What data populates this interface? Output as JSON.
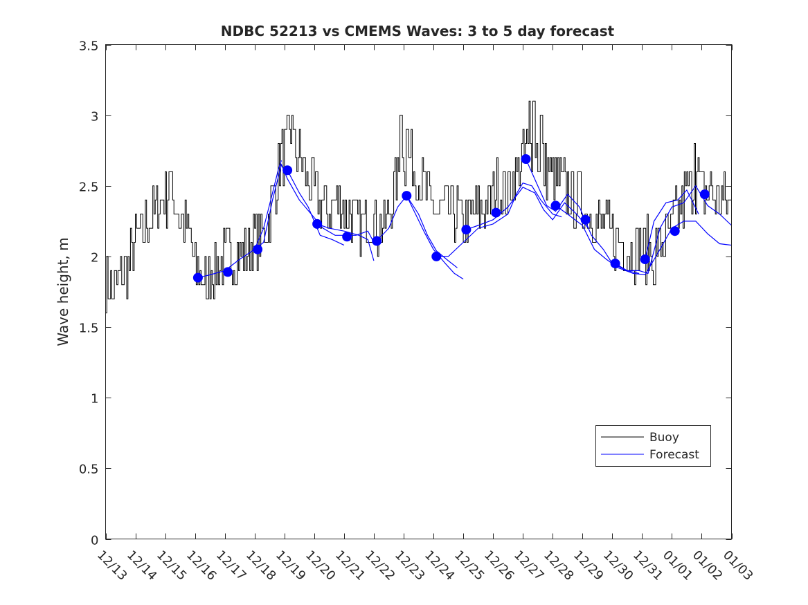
{
  "chart_data": {
    "type": "line",
    "title": "NDBC 52213 vs CMEMS Waves: 3 to 5 day forecast",
    "xlabel": "",
    "ylabel": "Wave height, m",
    "ylim": [
      0,
      3.5
    ],
    "xlim_days": [
      0,
      21
    ],
    "yticks": [
      0,
      0.5,
      1,
      1.5,
      2,
      2.5,
      3,
      3.5
    ],
    "ytick_labels": [
      "0",
      "0.5",
      "1",
      "1.5",
      "2",
      "2.5",
      "3",
      "3.5"
    ],
    "xtick_labels": [
      "12/13",
      "12/14",
      "12/15",
      "12/16",
      "12/17",
      "12/18",
      "12/19",
      "12/20",
      "12/21",
      "12/22",
      "12/23",
      "12/24",
      "12/25",
      "12/26",
      "12/27",
      "12/28",
      "12/29",
      "12/30",
      "12/31",
      "01/01",
      "01/02",
      "01/03"
    ],
    "legend": {
      "position": "bottom-right",
      "entries": [
        "Buoy",
        "Forecast"
      ]
    },
    "colors": {
      "buoy": "#000000",
      "forecast": "#0000ff",
      "axis": "#262626"
    },
    "buoy_anchors": [
      [
        0.0,
        1.85
      ],
      [
        0.15,
        1.75
      ],
      [
        0.5,
        1.85
      ],
      [
        0.8,
        1.95
      ],
      [
        1.0,
        2.1
      ],
      [
        1.3,
        2.2
      ],
      [
        1.6,
        2.3
      ],
      [
        1.9,
        2.4
      ],
      [
        2.1,
        2.45
      ],
      [
        2.3,
        2.4
      ],
      [
        2.5,
        2.25
      ],
      [
        2.7,
        2.2
      ],
      [
        2.9,
        2.05
      ],
      [
        3.0,
        1.9
      ],
      [
        3.2,
        1.85
      ],
      [
        3.5,
        1.9
      ],
      [
        3.8,
        1.95
      ],
      [
        4.1,
        2.0
      ],
      [
        4.4,
        2.0
      ],
      [
        4.7,
        2.05
      ],
      [
        5.0,
        2.1
      ],
      [
        5.3,
        2.15
      ],
      [
        5.6,
        2.4
      ],
      [
        5.9,
        2.7
      ],
      [
        6.2,
        2.8
      ],
      [
        6.5,
        2.7
      ],
      [
        6.8,
        2.5
      ],
      [
        7.1,
        2.4
      ],
      [
        7.4,
        2.35
      ],
      [
        7.7,
        2.4
      ],
      [
        8.0,
        2.35
      ],
      [
        8.3,
        2.25
      ],
      [
        8.6,
        2.2
      ],
      [
        8.9,
        2.3
      ],
      [
        9.1,
        2.2
      ],
      [
        9.4,
        2.2
      ],
      [
        9.7,
        2.5
      ],
      [
        10.0,
        2.7
      ],
      [
        10.3,
        2.65
      ],
      [
        10.6,
        2.5
      ],
      [
        10.9,
        2.35
      ],
      [
        11.2,
        2.3
      ],
      [
        11.5,
        2.35
      ],
      [
        11.8,
        2.3
      ],
      [
        12.0,
        2.2
      ],
      [
        12.3,
        2.3
      ],
      [
        12.6,
        2.3
      ],
      [
        12.9,
        2.4
      ],
      [
        13.2,
        2.5
      ],
      [
        13.5,
        2.45
      ],
      [
        13.8,
        2.6
      ],
      [
        14.1,
        2.75
      ],
      [
        14.4,
        2.8
      ],
      [
        14.7,
        2.65
      ],
      [
        15.0,
        2.55
      ],
      [
        15.3,
        2.5
      ],
      [
        15.6,
        2.45
      ],
      [
        15.9,
        2.4
      ],
      [
        16.2,
        2.3
      ],
      [
        16.5,
        2.25
      ],
      [
        16.8,
        2.2
      ],
      [
        17.1,
        2.1
      ],
      [
        17.4,
        2.1
      ],
      [
        17.7,
        2.05
      ],
      [
        18.0,
        2.05
      ],
      [
        18.3,
        2.05
      ],
      [
        18.6,
        2.1
      ],
      [
        18.9,
        2.15
      ],
      [
        19.2,
        2.3
      ],
      [
        19.5,
        2.45
      ],
      [
        19.8,
        2.55
      ],
      [
        20.1,
        2.45
      ],
      [
        20.4,
        2.45
      ],
      [
        20.7,
        2.4
      ],
      [
        21.0,
        2.3
      ]
    ],
    "buoy_spikes": [
      [
        2.15,
        2.6
      ],
      [
        6.1,
        3.0
      ],
      [
        6.25,
        3.0
      ],
      [
        9.9,
        3.0
      ],
      [
        10.1,
        2.9
      ],
      [
        14.2,
        3.1
      ],
      [
        14.35,
        3.1
      ],
      [
        14.6,
        3.0
      ],
      [
        19.75,
        2.8
      ],
      [
        3.4,
        1.7
      ],
      [
        3.5,
        1.7
      ],
      [
        0.1,
        1.7
      ],
      [
        0.2,
        1.7
      ],
      [
        18.4,
        1.8
      ]
    ],
    "forecast_segments": [
      [
        [
          3.1,
          1.85
        ],
        [
          3.5,
          1.87
        ],
        [
          4.0,
          1.9
        ],
        [
          4.5,
          1.98
        ],
        [
          5.0,
          2.05
        ],
        [
          5.3,
          2.2
        ],
        [
          5.6,
          2.45
        ],
        [
          5.8,
          2.62
        ],
        [
          5.9,
          2.68
        ]
      ],
      [
        [
          5.0,
          2.05
        ],
        [
          5.3,
          2.1
        ],
        [
          5.6,
          2.4
        ],
        [
          5.9,
          2.65
        ],
        [
          6.1,
          2.55
        ],
        [
          6.5,
          2.4
        ],
        [
          6.9,
          2.3
        ],
        [
          7.3,
          2.2
        ],
        [
          7.7,
          2.15
        ],
        [
          8.0,
          2.15
        ],
        [
          8.4,
          2.15
        ],
        [
          8.8,
          2.18
        ],
        [
          9.0,
          2.1
        ]
      ],
      [
        [
          6.1,
          2.61
        ],
        [
          6.5,
          2.45
        ],
        [
          6.8,
          2.35
        ],
        [
          7.0,
          2.25
        ],
        [
          7.2,
          2.15
        ],
        [
          7.6,
          2.12
        ],
        [
          8.0,
          2.08
        ]
      ],
      [
        [
          7.1,
          2.23
        ],
        [
          7.5,
          2.2
        ],
        [
          8.0,
          2.18
        ],
        [
          8.5,
          2.15
        ],
        [
          8.8,
          2.12
        ],
        [
          9.0,
          1.97
        ]
      ],
      [
        [
          9.1,
          2.11
        ],
        [
          9.5,
          2.2
        ],
        [
          9.8,
          2.35
        ],
        [
          10.1,
          2.43
        ],
        [
          10.4,
          2.3
        ],
        [
          10.7,
          2.17
        ],
        [
          11.0,
          2.05
        ],
        [
          11.4,
          1.95
        ],
        [
          11.7,
          1.88
        ],
        [
          12.0,
          1.84
        ]
      ],
      [
        [
          10.1,
          2.43
        ],
        [
          10.5,
          2.3
        ],
        [
          10.8,
          2.15
        ],
        [
          11.1,
          2.04
        ],
        [
          11.5,
          1.97
        ],
        [
          11.8,
          1.92
        ]
      ],
      [
        [
          11.1,
          2.0
        ],
        [
          11.5,
          2.0
        ],
        [
          12.0,
          2.1
        ],
        [
          12.5,
          2.2
        ],
        [
          13.0,
          2.23
        ],
        [
          13.5,
          2.3
        ],
        [
          13.8,
          2.45
        ],
        [
          14.0,
          2.52
        ],
        [
          14.3,
          2.5
        ],
        [
          14.6,
          2.4
        ],
        [
          15.0,
          2.3
        ],
        [
          15.3,
          2.28
        ]
      ],
      [
        [
          12.1,
          2.19
        ],
        [
          12.5,
          2.22
        ],
        [
          13.0,
          2.26
        ],
        [
          13.5,
          2.35
        ],
        [
          14.0,
          2.49
        ],
        [
          14.4,
          2.45
        ],
        [
          14.7,
          2.33
        ],
        [
          15.0,
          2.26
        ],
        [
          15.4,
          2.38
        ],
        [
          15.8,
          2.3
        ],
        [
          16.2,
          2.2
        ]
      ],
      [
        [
          14.1,
          2.69
        ],
        [
          14.5,
          2.5
        ],
        [
          14.8,
          2.36
        ],
        [
          15.1,
          2.32
        ],
        [
          15.5,
          2.44
        ],
        [
          15.9,
          2.35
        ],
        [
          16.3,
          2.15
        ],
        [
          16.7,
          2.05
        ],
        [
          17.0,
          1.95
        ],
        [
          17.5,
          1.9
        ],
        [
          17.9,
          1.88
        ]
      ],
      [
        [
          15.1,
          2.36
        ],
        [
          15.5,
          2.3
        ],
        [
          16.0,
          2.22
        ],
        [
          16.4,
          2.05
        ],
        [
          16.8,
          1.98
        ],
        [
          17.2,
          1.92
        ],
        [
          17.7,
          1.88
        ],
        [
          18.1,
          1.87
        ],
        [
          18.6,
          2.05
        ],
        [
          19.0,
          2.2
        ],
        [
          19.4,
          2.25
        ],
        [
          19.8,
          2.25
        ],
        [
          20.2,
          2.16
        ],
        [
          20.6,
          2.09
        ],
        [
          21.0,
          2.08
        ]
      ],
      [
        [
          17.1,
          1.95
        ],
        [
          17.5,
          1.9
        ],
        [
          17.9,
          1.9
        ],
        [
          18.2,
          1.88
        ],
        [
          18.6,
          2.2
        ],
        [
          19.0,
          2.35
        ],
        [
          19.4,
          2.38
        ],
        [
          19.8,
          2.5
        ],
        [
          20.2,
          2.36
        ],
        [
          20.6,
          2.3
        ],
        [
          21.0,
          2.22
        ]
      ],
      [
        [
          18.1,
          1.98
        ],
        [
          18.4,
          2.25
        ],
        [
          18.8,
          2.38
        ],
        [
          19.2,
          2.4
        ],
        [
          19.5,
          2.47
        ],
        [
          19.9,
          2.3
        ]
      ]
    ],
    "forecast_points": [
      [
        3.1,
        1.85
      ],
      [
        4.1,
        1.89
      ],
      [
        5.1,
        2.05
      ],
      [
        6.1,
        2.61
      ],
      [
        7.1,
        2.23
      ],
      [
        8.1,
        2.14
      ],
      [
        9.1,
        2.11
      ],
      [
        10.1,
        2.43
      ],
      [
        11.1,
        2.0
      ],
      [
        12.1,
        2.19
      ],
      [
        13.1,
        2.31
      ],
      [
        14.1,
        2.69
      ],
      [
        15.1,
        2.36
      ],
      [
        16.1,
        2.26
      ],
      [
        17.1,
        1.95
      ],
      [
        18.1,
        1.98
      ],
      [
        19.1,
        2.18
      ],
      [
        20.1,
        2.44
      ]
    ]
  }
}
